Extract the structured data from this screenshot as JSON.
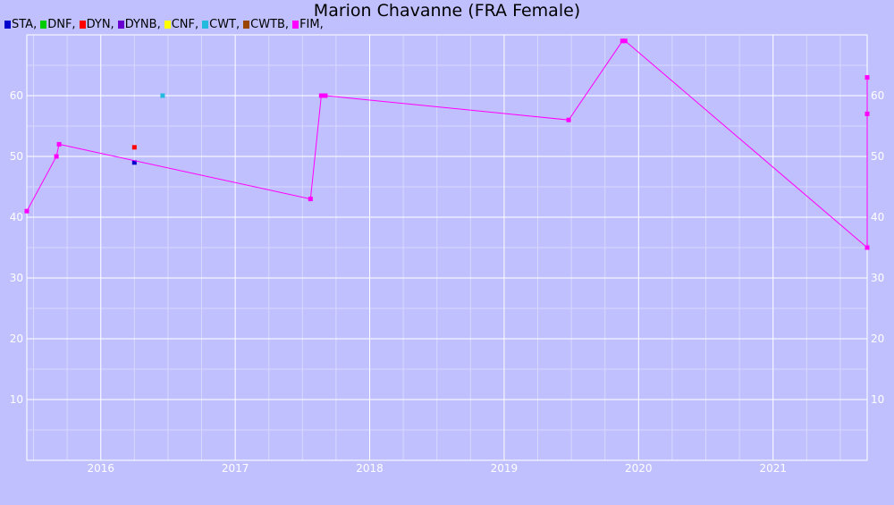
{
  "chart_data": {
    "type": "scatter",
    "title": "Marion Chavanne (FRA Female)",
    "xlabel": "",
    "ylabel": "",
    "xlim": [
      2015.45,
      2021.7
    ],
    "ylim": [
      0,
      70
    ],
    "grid": true,
    "legend_placement": "top-left",
    "legend": [
      {
        "label": "STA,",
        "color": "#0000cc"
      },
      {
        "label": "DNF,",
        "color": "#00cc00"
      },
      {
        "label": "DYN,",
        "color": "#ff0000"
      },
      {
        "label": "DYNB,",
        "color": "#6a00d0"
      },
      {
        "label": "CNF,",
        "color": "#ffff00"
      },
      {
        "label": "CWT,",
        "color": "#22bbdd"
      },
      {
        "label": "CWTB,",
        "color": "#994400"
      },
      {
        "label": "FIM,",
        "color": "#ff00ff"
      }
    ],
    "x_ticks": [
      2016,
      2017,
      2018,
      2019,
      2020,
      2021
    ],
    "y_ticks": [
      10,
      20,
      30,
      40,
      50,
      60
    ],
    "series": [
      {
        "name": "STA",
        "color": "#0000cc",
        "connected": false,
        "points": [
          [
            2016.25,
            49
          ]
        ]
      },
      {
        "name": "DYN",
        "color": "#ff0000",
        "connected": false,
        "points": [
          [
            2016.25,
            51.5
          ]
        ]
      },
      {
        "name": "CWT",
        "color": "#22bbdd",
        "connected": false,
        "points": [
          [
            2016.46,
            60
          ]
        ]
      },
      {
        "name": "FIM",
        "color": "#ff00ff",
        "connected": true,
        "points": [
          [
            2015.45,
            41
          ],
          [
            2015.67,
            50
          ],
          [
            2015.69,
            52
          ],
          [
            2017.56,
            43
          ],
          [
            2017.64,
            60
          ],
          [
            2017.67,
            60
          ],
          [
            2019.48,
            56
          ],
          [
            2019.88,
            69
          ],
          [
            2019.9,
            69
          ],
          [
            2021.7,
            35
          ],
          [
            2021.7,
            57
          ],
          [
            2021.7,
            63
          ]
        ]
      }
    ]
  }
}
